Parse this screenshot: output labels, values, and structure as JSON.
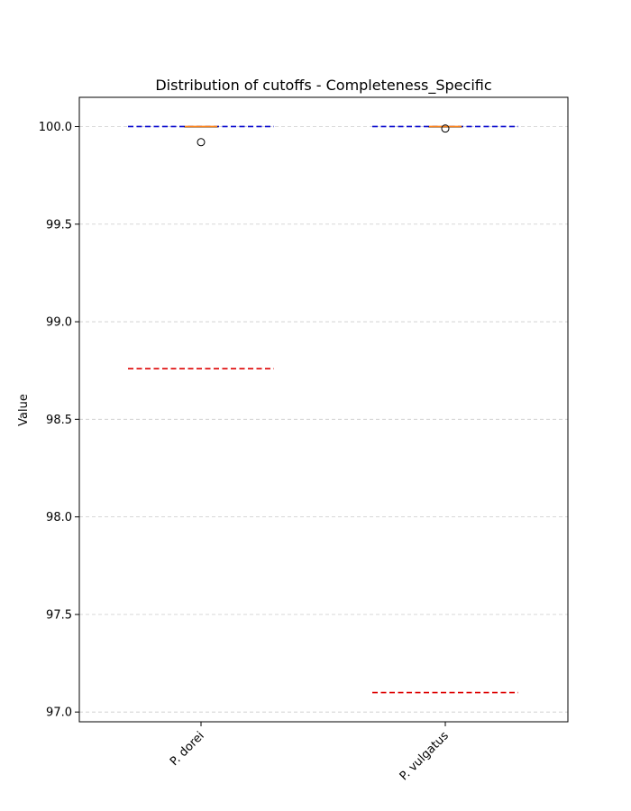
{
  "chart_data": {
    "type": "box",
    "title": "Distribution of cutoffs - Completeness_Specific",
    "xlabel": "",
    "ylabel": "Value",
    "categories": [
      "P. dorei",
      "P. vulgatus"
    ],
    "ylim": [
      96.95,
      100.15
    ],
    "yticks": [
      97.0,
      97.5,
      98.0,
      98.5,
      99.0,
      99.5,
      100.0
    ],
    "ytick_labels": [
      "97.0",
      "97.5",
      "98.0",
      "98.5",
      "99.0",
      "99.5",
      "100.0"
    ],
    "grid": "y-dashed",
    "boxes": [
      {
        "category": "P. dorei",
        "q1": 100.0,
        "median": 100.0,
        "q3": 100.0,
        "whisker_low": 100.0,
        "whisker_high": 100.0,
        "outliers": [
          99.92
        ]
      },
      {
        "category": "P. vulgatus",
        "q1": 100.0,
        "median": 100.0,
        "q3": 100.0,
        "whisker_low": 100.0,
        "whisker_high": 100.0,
        "outliers": [
          99.99
        ]
      }
    ],
    "reference_lines": [
      {
        "category": "P. dorei",
        "value": 100.0,
        "color": "#0000cc",
        "style": "dashed"
      },
      {
        "category": "P. dorei",
        "value": 98.76,
        "color": "#dd0000",
        "style": "dashed"
      },
      {
        "category": "P. vulgatus",
        "value": 100.0,
        "color": "#0000cc",
        "style": "dashed"
      },
      {
        "category": "P. vulgatus",
        "value": 97.1,
        "color": "#dd0000",
        "style": "dashed"
      }
    ],
    "colors": {
      "median": "#ff7f0e",
      "box": "#000000",
      "grid": "#cccccc"
    }
  }
}
